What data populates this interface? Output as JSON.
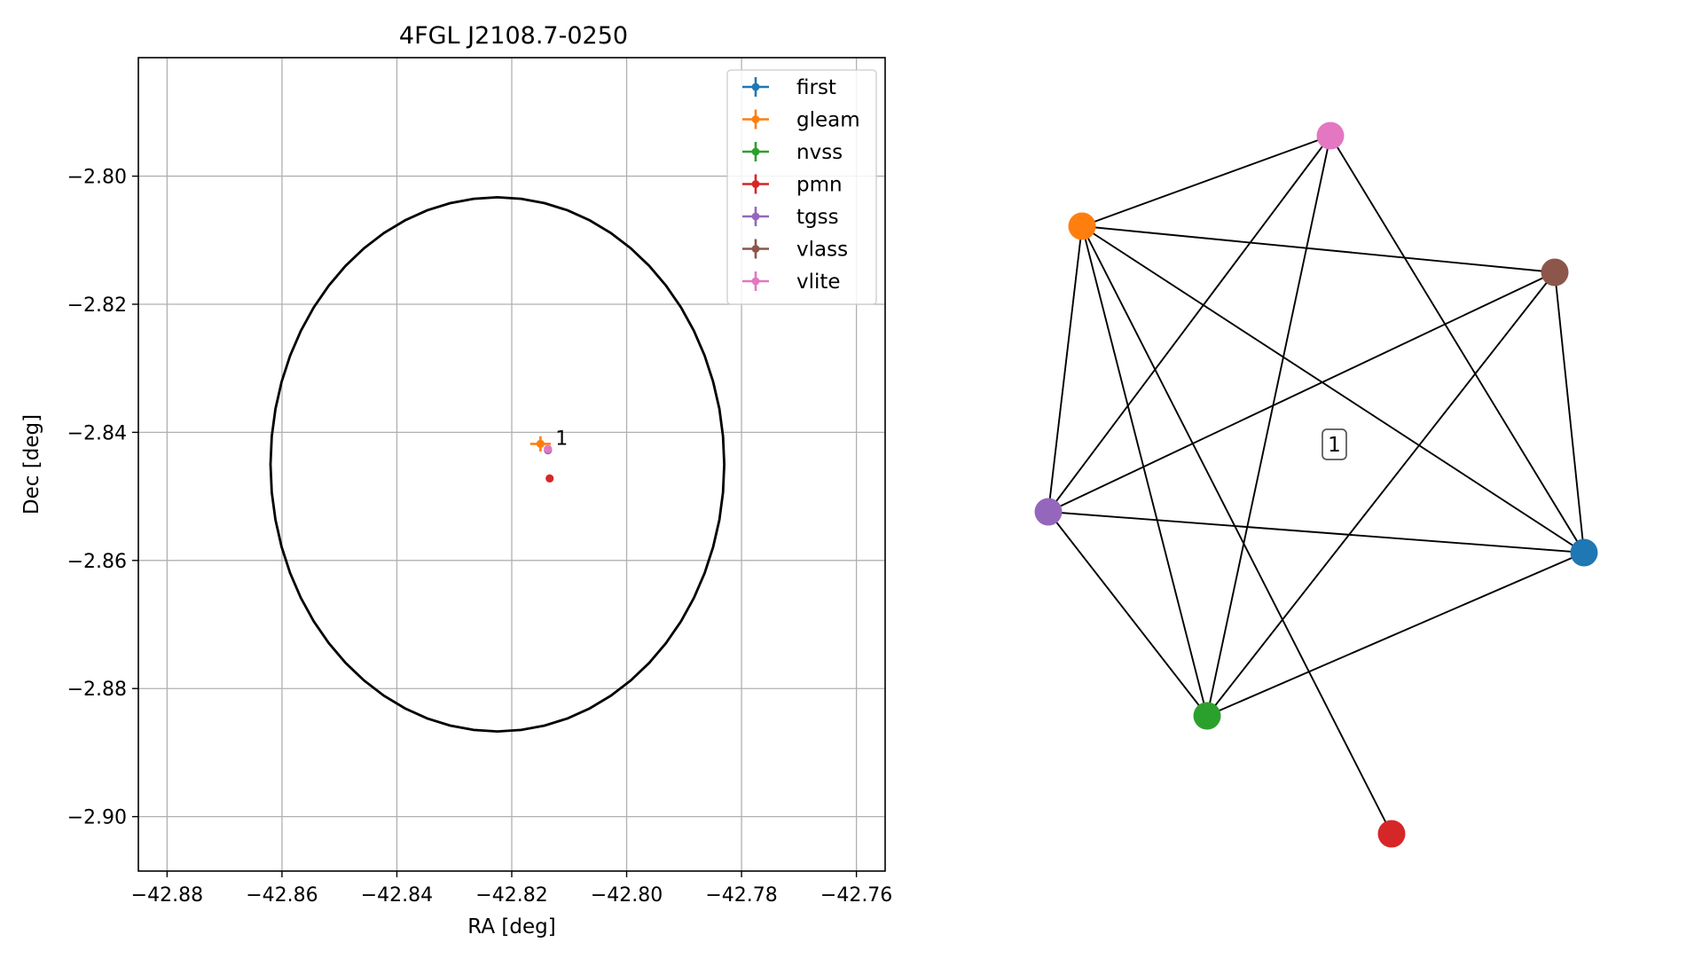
{
  "chart_data": [
    {
      "type": "scatter",
      "title": "4FGL J2108.7-0250",
      "xlabel": "RA [deg]",
      "ylabel": "Dec [deg]",
      "xlim": [
        -42.885,
        -42.755
      ],
      "ylim": [
        -2.9085,
        -2.7815
      ],
      "x_ticks": [
        -42.88,
        -42.86,
        -42.84,
        -42.82,
        -42.8,
        -42.78,
        -42.76
      ],
      "y_ticks": [
        -2.8,
        -2.82,
        -2.84,
        -2.86,
        -2.88,
        -2.9
      ],
      "x_tick_labels": [
        "−42.88",
        "−42.86",
        "−42.84",
        "−42.82",
        "−42.80",
        "−42.78",
        "−42.76"
      ],
      "y_tick_labels": [
        "−2.80",
        "−2.82",
        "−2.84",
        "−2.86",
        "−2.88",
        "−2.90"
      ],
      "grid": true,
      "legend_position": "upper right",
      "ellipse": {
        "center_ra": -42.8225,
        "center_dec": -2.845,
        "half_width_ra": 0.0395,
        "half_height_dec": 0.0417,
        "color": "#000000"
      },
      "series": [
        {
          "name": "first",
          "color": "#1f77b4",
          "points": []
        },
        {
          "name": "gleam",
          "color": "#ff7f0e",
          "points": [
            {
              "ra": -42.815,
              "dec": -2.8418,
              "ra_err": 0.0018,
              "dec_err": 0.0012
            }
          ]
        },
        {
          "name": "nvss",
          "color": "#2ca02c",
          "points": []
        },
        {
          "name": "pmn",
          "color": "#d62728",
          "points": [
            {
              "ra": -42.8134,
              "dec": -2.8472
            }
          ]
        },
        {
          "name": "tgss",
          "color": "#9467bd",
          "points": [
            {
              "ra": -42.8137,
              "dec": -2.8428
            }
          ]
        },
        {
          "name": "vlass",
          "color": "#8c564b",
          "points": []
        },
        {
          "name": "vlite",
          "color": "#e377c2",
          "points": [
            {
              "ra": -42.8137,
              "dec": -2.8426
            }
          ]
        }
      ],
      "annotations": [
        {
          "text": "1",
          "ra": -42.8124,
          "dec": -2.841
        }
      ]
    },
    {
      "type": "network",
      "nodes": [
        {
          "id": "first",
          "color": "#1f77b4"
        },
        {
          "id": "gleam",
          "color": "#ff7f0e"
        },
        {
          "id": "nvss",
          "color": "#2ca02c"
        },
        {
          "id": "pmn",
          "color": "#d62728"
        },
        {
          "id": "tgss",
          "color": "#9467bd"
        },
        {
          "id": "vlass",
          "color": "#8c564b"
        },
        {
          "id": "vlite",
          "color": "#e377c2"
        }
      ],
      "edges": [
        [
          "vlite",
          "gleam"
        ],
        [
          "vlite",
          "tgss"
        ],
        [
          "vlite",
          "nvss"
        ],
        [
          "vlite",
          "first"
        ],
        [
          "gleam",
          "vlass"
        ],
        [
          "gleam",
          "tgss"
        ],
        [
          "gleam",
          "nvss"
        ],
        [
          "gleam",
          "first"
        ],
        [
          "gleam",
          "pmn"
        ],
        [
          "vlass",
          "tgss"
        ],
        [
          "vlass",
          "nvss"
        ],
        [
          "vlass",
          "first"
        ],
        [
          "tgss",
          "first"
        ],
        [
          "tgss",
          "nvss"
        ],
        [
          "nvss",
          "first"
        ]
      ],
      "cluster_label": "1"
    }
  ]
}
